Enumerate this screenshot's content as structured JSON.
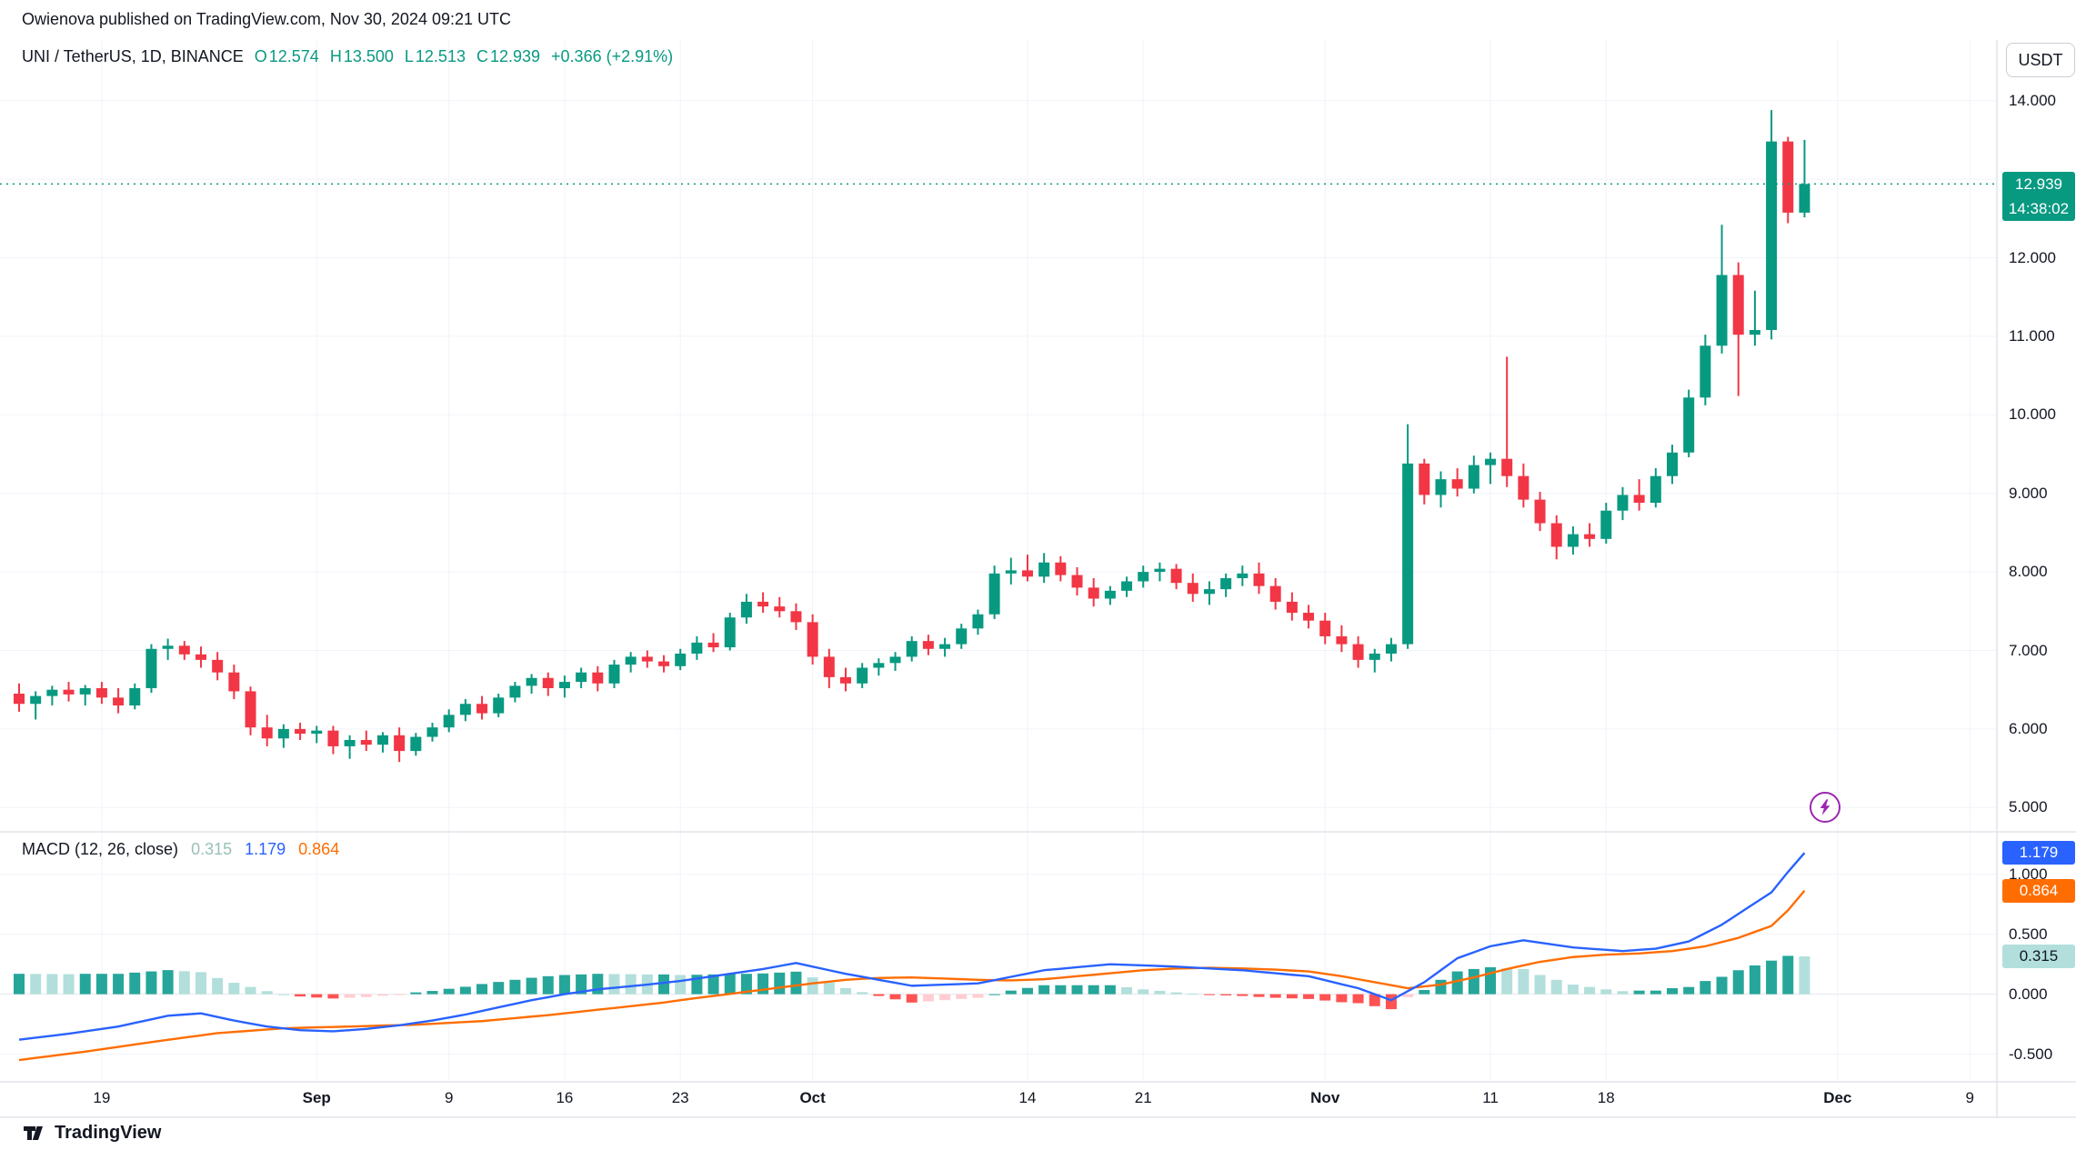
{
  "attribution": "Owienova published on TradingView.com, Nov 30, 2024 09:21 UTC",
  "header": {
    "symbol_title": "UNI / TetherUS, 1D, BINANCE",
    "ohlc": {
      "open_label": "O",
      "open": "12.574",
      "high_label": "H",
      "high": "13.500",
      "low_label": "L",
      "low": "12.513",
      "close_label": "C",
      "close": "12.939",
      "change": "+0.366 (+2.91%)"
    },
    "currency_button": "USDT"
  },
  "price_axis": {
    "ticks": [
      {
        "label": "14.000",
        "value": 14
      },
      {
        "label": "12.000",
        "value": 12
      },
      {
        "label": "11.000",
        "value": 11
      },
      {
        "label": "10.000",
        "value": 10
      },
      {
        "label": "9.000",
        "value": 9
      },
      {
        "label": "8.000",
        "value": 8
      },
      {
        "label": "7.000",
        "value": 7
      },
      {
        "label": "6.000",
        "value": 6
      },
      {
        "label": "5.000",
        "value": 5
      }
    ],
    "last_price_badge": {
      "price": "12.939",
      "countdown": "14:38:02"
    }
  },
  "time_axis": {
    "ticks": [
      {
        "label": "19",
        "index": 5
      },
      {
        "label": "Sep",
        "index": 18
      },
      {
        "label": "9",
        "index": 26
      },
      {
        "label": "16",
        "index": 33
      },
      {
        "label": "23",
        "index": 40
      },
      {
        "label": "Oct",
        "index": 48
      },
      {
        "label": "14",
        "index": 61
      },
      {
        "label": "21",
        "index": 68
      },
      {
        "label": "Nov",
        "index": 79
      },
      {
        "label": "11",
        "index": 89
      },
      {
        "label": "18",
        "index": 96
      },
      {
        "label": "Dec",
        "index": 110
      },
      {
        "label": "9",
        "index": 118
      }
    ]
  },
  "macd": {
    "legend_title": "MACD (12, 26, close)",
    "hist_value": "0.315",
    "macd_value": "1.179",
    "signal_value": "0.864",
    "axis_ticks": [
      {
        "label": "1.000",
        "value": 1
      },
      {
        "label": "0.500",
        "value": 0.5
      },
      {
        "label": "0.000",
        "value": 0
      },
      {
        "label": "-0.500",
        "value": -0.5
      }
    ]
  },
  "footer": {
    "logo_text": "TradingView"
  },
  "colors": {
    "up": "#089981",
    "down": "#f23645",
    "macd_line": "#2962ff",
    "signal_line": "#ff6d00",
    "hist_grow_above": "#26a69a",
    "hist_fall_above": "#b2dfdb",
    "hist_grow_below": "#ffcdd2",
    "hist_fall_below": "#ff5252",
    "last_price_badge_bg": "#089981",
    "macd_badge_bg": "#2962ff",
    "signal_badge_bg": "#ff6d00",
    "hist_badge_bg": "#b2dfdb",
    "accent_purple": "#9c27b0"
  },
  "chart_data": {
    "type": "candlestick",
    "symbol": "UNI/USDT",
    "exchange": "BINANCE",
    "interval": "1D",
    "start_date": "2024-08-14",
    "end_date": "2024-11-30",
    "price_range": [
      5,
      14
    ],
    "title": "UNI / TetherUS, 1D, BINANCE",
    "candles": [
      [
        6.45,
        6.58,
        6.22,
        6.32
      ],
      [
        6.32,
        6.48,
        6.12,
        6.42
      ],
      [
        6.42,
        6.55,
        6.3,
        6.5
      ],
      [
        6.5,
        6.6,
        6.35,
        6.44
      ],
      [
        6.44,
        6.56,
        6.3,
        6.52
      ],
      [
        6.52,
        6.6,
        6.32,
        6.4
      ],
      [
        6.4,
        6.52,
        6.2,
        6.3
      ],
      [
        6.3,
        6.58,
        6.25,
        6.52
      ],
      [
        6.52,
        7.08,
        6.46,
        7.02
      ],
      [
        7.02,
        7.15,
        6.88,
        7.06
      ],
      [
        7.06,
        7.12,
        6.88,
        6.95
      ],
      [
        6.95,
        7.05,
        6.78,
        6.88
      ],
      [
        6.88,
        6.98,
        6.62,
        6.72
      ],
      [
        6.72,
        6.82,
        6.38,
        6.48
      ],
      [
        6.48,
        6.54,
        5.92,
        6.02
      ],
      [
        6.02,
        6.18,
        5.78,
        5.88
      ],
      [
        5.88,
        6.06,
        5.76,
        6.0
      ],
      [
        6.0,
        6.08,
        5.86,
        5.94
      ],
      [
        5.94,
        6.04,
        5.82,
        5.98
      ],
      [
        5.98,
        6.04,
        5.68,
        5.78
      ],
      [
        5.78,
        5.92,
        5.62,
        5.86
      ],
      [
        5.86,
        5.98,
        5.72,
        5.8
      ],
      [
        5.8,
        5.96,
        5.7,
        5.92
      ],
      [
        5.92,
        6.02,
        5.58,
        5.72
      ],
      [
        5.72,
        5.95,
        5.66,
        5.9
      ],
      [
        5.9,
        6.08,
        5.84,
        6.02
      ],
      [
        6.02,
        6.25,
        5.96,
        6.18
      ],
      [
        6.18,
        6.38,
        6.1,
        6.32
      ],
      [
        6.32,
        6.42,
        6.12,
        6.2
      ],
      [
        6.2,
        6.45,
        6.15,
        6.4
      ],
      [
        6.4,
        6.6,
        6.34,
        6.55
      ],
      [
        6.55,
        6.7,
        6.45,
        6.65
      ],
      [
        6.65,
        6.72,
        6.42,
        6.52
      ],
      [
        6.52,
        6.68,
        6.4,
        6.6
      ],
      [
        6.6,
        6.78,
        6.52,
        6.72
      ],
      [
        6.72,
        6.8,
        6.48,
        6.58
      ],
      [
        6.58,
        6.88,
        6.52,
        6.82
      ],
      [
        6.82,
        6.98,
        6.72,
        6.92
      ],
      [
        6.92,
        7.0,
        6.78,
        6.86
      ],
      [
        6.86,
        6.94,
        6.72,
        6.8
      ],
      [
        6.8,
        7.02,
        6.75,
        6.96
      ],
      [
        6.96,
        7.18,
        6.88,
        7.1
      ],
      [
        7.1,
        7.22,
        6.98,
        7.04
      ],
      [
        7.04,
        7.48,
        7.0,
        7.42
      ],
      [
        7.42,
        7.72,
        7.34,
        7.62
      ],
      [
        7.62,
        7.74,
        7.48,
        7.56
      ],
      [
        7.56,
        7.68,
        7.42,
        7.5
      ],
      [
        7.5,
        7.6,
        7.26,
        7.36
      ],
      [
        7.36,
        7.46,
        6.82,
        6.92
      ],
      [
        6.92,
        7.02,
        6.52,
        6.66
      ],
      [
        6.66,
        6.78,
        6.48,
        6.58
      ],
      [
        6.58,
        6.84,
        6.52,
        6.78
      ],
      [
        6.78,
        6.9,
        6.68,
        6.84
      ],
      [
        6.84,
        6.98,
        6.74,
        6.92
      ],
      [
        6.92,
        7.18,
        6.86,
        7.12
      ],
      [
        7.12,
        7.2,
        6.94,
        7.02
      ],
      [
        7.02,
        7.16,
        6.92,
        7.08
      ],
      [
        7.08,
        7.34,
        7.02,
        7.28
      ],
      [
        7.28,
        7.52,
        7.2,
        7.46
      ],
      [
        7.46,
        8.08,
        7.4,
        7.98
      ],
      [
        7.98,
        8.18,
        7.84,
        8.02
      ],
      [
        8.02,
        8.22,
        7.88,
        7.94
      ],
      [
        7.94,
        8.24,
        7.86,
        8.12
      ],
      [
        8.12,
        8.2,
        7.88,
        7.96
      ],
      [
        7.96,
        8.06,
        7.7,
        7.8
      ],
      [
        7.8,
        7.92,
        7.56,
        7.66
      ],
      [
        7.66,
        7.82,
        7.58,
        7.76
      ],
      [
        7.76,
        7.94,
        7.68,
        7.88
      ],
      [
        7.88,
        8.08,
        7.8,
        8.0
      ],
      [
        8.0,
        8.12,
        7.88,
        8.04
      ],
      [
        8.04,
        8.1,
        7.78,
        7.86
      ],
      [
        7.86,
        7.98,
        7.62,
        7.72
      ],
      [
        7.72,
        7.88,
        7.58,
        7.78
      ],
      [
        7.78,
        7.98,
        7.68,
        7.92
      ],
      [
        7.92,
        8.08,
        7.82,
        7.98
      ],
      [
        7.98,
        8.12,
        7.72,
        7.82
      ],
      [
        7.82,
        7.92,
        7.52,
        7.62
      ],
      [
        7.62,
        7.74,
        7.38,
        7.48
      ],
      [
        7.48,
        7.58,
        7.28,
        7.38
      ],
      [
        7.38,
        7.48,
        7.08,
        7.18
      ],
      [
        7.18,
        7.32,
        6.98,
        7.08
      ],
      [
        7.08,
        7.18,
        6.78,
        6.88
      ],
      [
        6.88,
        7.02,
        6.72,
        6.96
      ],
      [
        6.96,
        7.16,
        6.86,
        7.08
      ],
      [
        7.08,
        9.88,
        7.02,
        9.38
      ],
      [
        9.38,
        9.44,
        8.86,
        8.98
      ],
      [
        8.98,
        9.28,
        8.82,
        9.18
      ],
      [
        9.18,
        9.32,
        8.96,
        9.06
      ],
      [
        9.06,
        9.48,
        9.0,
        9.36
      ],
      [
        9.36,
        9.52,
        9.12,
        9.44
      ],
      [
        9.44,
        10.74,
        9.08,
        9.22
      ],
      [
        9.22,
        9.38,
        8.82,
        8.92
      ],
      [
        8.92,
        9.02,
        8.52,
        8.62
      ],
      [
        8.62,
        8.72,
        8.16,
        8.32
      ],
      [
        8.32,
        8.58,
        8.22,
        8.48
      ],
      [
        8.48,
        8.62,
        8.32,
        8.42
      ],
      [
        8.42,
        8.88,
        8.36,
        8.78
      ],
      [
        8.78,
        9.08,
        8.66,
        8.98
      ],
      [
        8.98,
        9.18,
        8.78,
        8.88
      ],
      [
        8.88,
        9.32,
        8.82,
        9.22
      ],
      [
        9.22,
        9.62,
        9.12,
        9.52
      ],
      [
        9.52,
        10.32,
        9.46,
        10.22
      ],
      [
        10.22,
        11.02,
        10.12,
        10.88
      ],
      [
        10.88,
        12.42,
        10.78,
        11.78
      ],
      [
        11.78,
        11.94,
        10.24,
        11.02
      ],
      [
        11.02,
        11.58,
        10.88,
        11.08
      ],
      [
        11.08,
        13.88,
        10.96,
        13.48
      ],
      [
        13.48,
        13.54,
        12.44,
        12.574
      ],
      [
        12.574,
        13.5,
        12.513,
        12.939
      ]
    ],
    "macd_line": [
      -0.38,
      -0.363,
      -0.347,
      -0.33,
      -0.31,
      -0.29,
      -0.27,
      -0.24,
      -0.21,
      -0.18,
      -0.17,
      -0.16,
      -0.19,
      -0.22,
      -0.245,
      -0.27,
      -0.285,
      -0.3,
      -0.305,
      -0.31,
      -0.3,
      -0.29,
      -0.275,
      -0.26,
      -0.24,
      -0.22,
      -0.195,
      -0.17,
      -0.14,
      -0.11,
      -0.08,
      -0.05,
      -0.025,
      0,
      0.02,
      0.04,
      0.053,
      0.067,
      0.08,
      0.095,
      0.11,
      0.13,
      0.15,
      0.17,
      0.19,
      0.21,
      0.235,
      0.26,
      0.23,
      0.2,
      0.17,
      0.145,
      0.12,
      0.095,
      0.07,
      0.075,
      0.08,
      0.085,
      0.09,
      0.117,
      0.145,
      0.172,
      0.2,
      0.212,
      0.225,
      0.237,
      0.25,
      0.245,
      0.24,
      0.235,
      0.23,
      0.222,
      0.215,
      0.207,
      0.2,
      0.187,
      0.175,
      0.162,
      0.15,
      0.117,
      0.083,
      0.05,
      0,
      -0.05,
      0.025,
      0.1,
      0.2,
      0.3,
      0.35,
      0.4,
      0.425,
      0.45,
      0.43,
      0.41,
      0.39,
      0.38,
      0.37,
      0.36,
      0.37,
      0.38,
      0.41,
      0.44,
      0.51,
      0.58,
      0.67,
      0.76,
      0.85,
      1.02,
      1.179
    ],
    "signal_line": [
      -0.55,
      -0.532,
      -0.515,
      -0.497,
      -0.48,
      -0.46,
      -0.44,
      -0.42,
      -0.4,
      -0.381,
      -0.362,
      -0.344,
      -0.325,
      -0.315,
      -0.305,
      -0.295,
      -0.285,
      -0.281,
      -0.277,
      -0.274,
      -0.27,
      -0.266,
      -0.262,
      -0.259,
      -0.255,
      -0.247,
      -0.24,
      -0.232,
      -0.225,
      -0.212,
      -0.2,
      -0.187,
      -0.175,
      -0.16,
      -0.145,
      -0.13,
      -0.115,
      -0.1,
      -0.085,
      -0.07,
      -0.05,
      -0.032,
      -0.015,
      0.002,
      0.02,
      0.037,
      0.055,
      0.072,
      0.09,
      0.105,
      0.12,
      0.128,
      0.135,
      0.138,
      0.14,
      0.135,
      0.13,
      0.125,
      0.12,
      0.117,
      0.115,
      0.12,
      0.125,
      0.137,
      0.15,
      0.162,
      0.175,
      0.187,
      0.2,
      0.207,
      0.215,
      0.217,
      0.22,
      0.217,
      0.215,
      0.21,
      0.205,
      0.197,
      0.19,
      0.17,
      0.15,
      0.125,
      0.1,
      0.075,
      0.05,
      0.065,
      0.08,
      0.11,
      0.14,
      0.175,
      0.21,
      0.24,
      0.27,
      0.29,
      0.31,
      0.32,
      0.33,
      0.335,
      0.34,
      0.35,
      0.36,
      0.38,
      0.4,
      0.435,
      0.47,
      0.52,
      0.57,
      0.7,
      0.864
    ]
  }
}
